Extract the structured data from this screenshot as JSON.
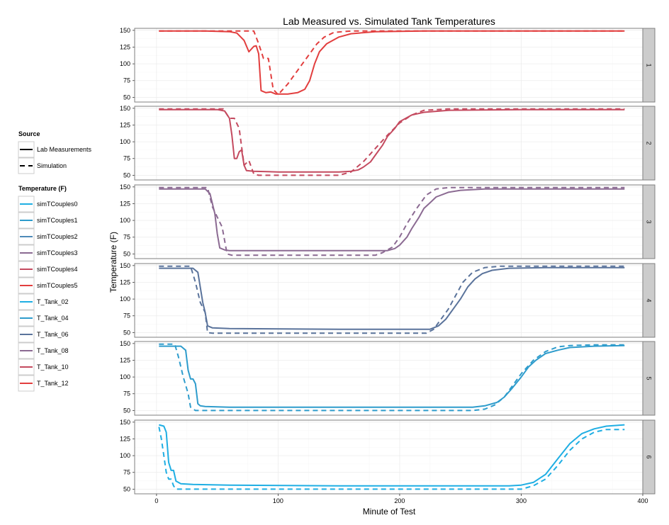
{
  "chart_data": {
    "type": "line",
    "title": "Lab Measured vs. Simulated Tank Temperatures",
    "xlabel": "Minute of Test",
    "ylabel": "Temperature (F)",
    "xlim": [
      -18,
      400
    ],
    "ylim": [
      43,
      153
    ],
    "x_ticks": [
      0,
      100,
      200,
      300,
      400
    ],
    "y_ticks": [
      50,
      75,
      100,
      125,
      150
    ],
    "grid": true,
    "legend_position": "left",
    "legend": {
      "source_title": "Source",
      "source_items": [
        {
          "label": "Lab Measurements",
          "dash": "solid"
        },
        {
          "label": "Simulation",
          "dash": "dashed"
        }
      ],
      "temperature_title": "Temperature (F)",
      "temperature_items": [
        {
          "label": "simTCouples0",
          "color": "#1faee3"
        },
        {
          "label": "simTCouples1",
          "color": "#2e9ccc"
        },
        {
          "label": "simTCouples2",
          "color": "#4e8ab8"
        },
        {
          "label": "simTCouples3",
          "color": "#8b6a92"
        },
        {
          "label": "simTCouples4",
          "color": "#c44a5f"
        },
        {
          "label": "simTCouples5",
          "color": "#e23e3e"
        },
        {
          "label": "T_Tank_02",
          "color": "#1faee3"
        },
        {
          "label": "T_Tank_04",
          "color": "#2e9ccc"
        },
        {
          "label": "T_Tank_06",
          "color": "#5a739b"
        },
        {
          "label": "T_Tank_08",
          "color": "#8b6a92"
        },
        {
          "label": "T_Tank_10",
          "color": "#c44a5f"
        },
        {
          "label": "T_Tank_12",
          "color": "#e23e3e"
        }
      ]
    },
    "panels": [
      {
        "strip": "1",
        "color": "#e23e3e",
        "series": [
          {
            "name": "T_Tank_12",
            "source": "Lab Measurements",
            "x": [
              2,
              40,
              60,
              66,
              72,
              76,
              80,
              82,
              84,
              86,
              90,
              94,
              98,
              102,
              108,
              116,
              122,
              126,
              130,
              134,
              140,
              150,
              160,
              180,
              220,
              300,
              385
            ],
            "y": [
              149,
              149,
              148,
              146,
              135,
              118,
              126,
              127,
              115,
              60,
              57,
              58,
              55,
              55,
              55,
              57,
              62,
              75,
              100,
              118,
              130,
              140,
              145,
              148,
              149,
              149,
              149
            ]
          },
          {
            "name": "simTCouples5",
            "source": "Simulation",
            "x": [
              2,
              80,
              84,
              88,
              92,
              96,
              100,
              104,
              108,
              114,
              120,
              126,
              132,
              138,
              146,
              160,
              200,
              300,
              385
            ],
            "y": [
              149,
              149,
              130,
              108,
              108,
              62,
              54,
              62,
              70,
              85,
              100,
              115,
              130,
              140,
              147,
              149,
              149,
              149,
              149
            ]
          }
        ]
      },
      {
        "strip": "2",
        "color": "#c44a5f",
        "series": [
          {
            "name": "T_Tank_10",
            "source": "Lab Measurements",
            "x": [
              2,
              50,
              56,
              60,
              62,
              64,
              66,
              68,
              70,
              72,
              74,
              80,
              100,
              150,
              160,
              166,
              170,
              176,
              180,
              186,
              190,
              196,
              200,
              210,
              220,
              240,
              300,
              385
            ],
            "y": [
              148,
              148,
              146,
              135,
              110,
              75,
              75,
              85,
              88,
              65,
              57,
              56,
              55,
              55,
              56,
              58,
              62,
              70,
              80,
              95,
              108,
              120,
              130,
              140,
              144,
              147,
              148,
              148
            ]
          },
          {
            "name": "simTCouples4",
            "source": "Simulation",
            "x": [
              2,
              55,
              60,
              64,
              68,
              72,
              76,
              80,
              84,
              90,
              100,
              150,
              160,
              170,
              180,
              190,
              200,
              210,
              220,
              240,
              300,
              385
            ],
            "y": [
              149,
              149,
              135,
              135,
              120,
              65,
              72,
              52,
              50,
              50,
              50,
              50,
              55,
              70,
              90,
              110,
              128,
              140,
              147,
              149,
              149,
              149
            ]
          }
        ]
      },
      {
        "strip": "3",
        "color": "#8b6a92",
        "series": [
          {
            "name": "T_Tank_08",
            "source": "Lab Measurements",
            "x": [
              2,
              40,
              44,
              48,
              50,
              52,
              56,
              60,
              100,
              180,
              190,
              196,
              200,
              206,
              210,
              216,
              220,
              226,
              230,
              240,
              250,
              270,
              300,
              385
            ],
            "y": [
              147,
              147,
              140,
              110,
              80,
              59,
              56,
              55,
              55,
              55,
              55,
              58,
              63,
              75,
              88,
              105,
              118,
              128,
              135,
              142,
              145,
              147,
              147,
              147
            ]
          },
          {
            "name": "simTCouples3",
            "source": "Simulation",
            "x": [
              2,
              42,
              46,
              50,
              54,
              58,
              62,
              100,
              180,
              186,
              194,
              200,
              206,
              214,
              222,
              230,
              240,
              260,
              300,
              385
            ],
            "y": [
              149,
              149,
              120,
              105,
              90,
              50,
              48,
              48,
              48,
              52,
              60,
              75,
              95,
              118,
              138,
              147,
              149,
              149,
              149,
              149
            ]
          }
        ]
      },
      {
        "strip": "4",
        "color": "#5a739b",
        "series": [
          {
            "name": "T_Tank_06",
            "source": "Lab Measurements",
            "x": [
              2,
              30,
              34,
              38,
              40,
              42,
              46,
              60,
              150,
              225,
              232,
              238,
              244,
              250,
              256,
              262,
              268,
              276,
              290,
              320,
              385
            ],
            "y": [
              146,
              146,
              140,
              95,
              80,
              60,
              57,
              56,
              55,
              55,
              60,
              70,
              85,
              100,
              118,
              130,
              138,
              143,
              146,
              147,
              147
            ]
          },
          {
            "name": "simTCouples2",
            "source": "Simulation",
            "x": [
              2,
              28,
              32,
              36,
              40,
              42,
              46,
              60,
              150,
              222,
              228,
              234,
              240,
              246,
              252,
              260,
              270,
              282,
              300,
              385
            ],
            "y": [
              149,
              149,
              125,
              95,
              80,
              50,
              49,
              49,
              49,
              49,
              55,
              70,
              85,
              105,
              125,
              140,
              147,
              149,
              149,
              149
            ]
          }
        ]
      },
      {
        "strip": "5",
        "color": "#2e9ccc",
        "series": [
          {
            "name": "T_Tank_04",
            "source": "Lab Measurements",
            "x": [
              2,
              20,
              24,
              26,
              28,
              30,
              32,
              34,
              36,
              40,
              60,
              150,
              260,
              270,
              280,
              286,
              292,
              300,
              306,
              312,
              320,
              330,
              340,
              360,
              385
            ],
            "y": [
              146,
              146,
              140,
              110,
              97,
              97,
              90,
              60,
              57,
              56,
              55,
              55,
              55,
              57,
              62,
              70,
              82,
              100,
              115,
              125,
              135,
              140,
              144,
              146,
              147
            ]
          },
          {
            "name": "simTCouples1",
            "source": "Simulation",
            "x": [
              2,
              15,
              18,
              22,
              26,
              28,
              32,
              60,
              150,
              260,
              270,
              278,
              286,
              294,
              300,
              310,
              320,
              330,
              340,
              360,
              385
            ],
            "y": [
              149,
              149,
              130,
              100,
              75,
              55,
              50,
              50,
              50,
              50,
              52,
              58,
              70,
              90,
              105,
              125,
              138,
              145,
              147,
              148,
              148
            ]
          }
        ]
      },
      {
        "strip": "6",
        "color": "#1faee3",
        "series": [
          {
            "name": "T_Tank_02",
            "source": "Lab Measurements",
            "x": [
              2,
              6,
              8,
              10,
              12,
              14,
              16,
              20,
              30,
              60,
              150,
              290,
              300,
              310,
              320,
              330,
              340,
              350,
              360,
              370,
              385
            ],
            "y": [
              146,
              144,
              135,
              90,
              78,
              78,
              62,
              58,
              57,
              56,
              55,
              55,
              56,
              60,
              72,
              95,
              118,
              133,
              140,
              144,
              146
            ]
          },
          {
            "name": "simTCouples0",
            "source": "Simulation",
            "x": [
              2,
              4,
              6,
              8,
              10,
              12,
              14,
              16,
              20,
              40,
              150,
              300,
              310,
              320,
              330,
              340,
              350,
              360,
              370,
              385
            ],
            "y": [
              143,
              125,
              100,
              75,
              65,
              65,
              55,
              50,
              50,
              50,
              50,
              50,
              55,
              65,
              85,
              108,
              125,
              135,
              139,
              139
            ]
          }
        ]
      }
    ]
  }
}
